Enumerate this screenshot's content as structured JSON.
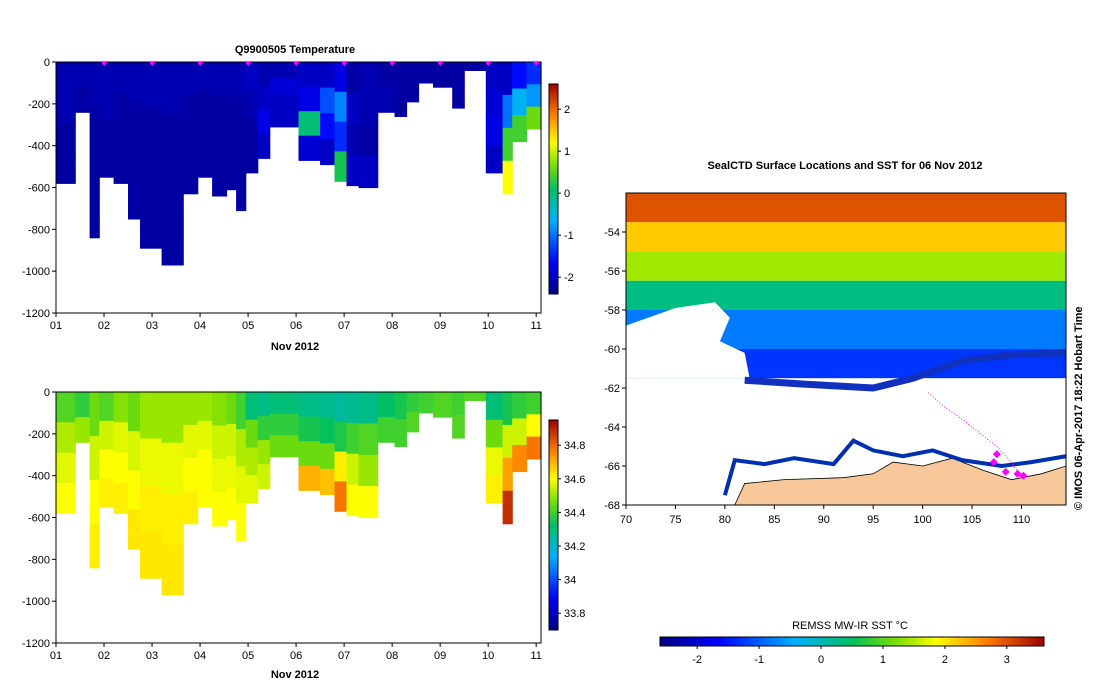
{
  "chart_data": [
    {
      "type": "heatmap",
      "id": "temperature-section",
      "title": "Q9900505  Temperature",
      "xlabel": "Nov 2012",
      "ylabel": "",
      "x_tick_labels": [
        "01",
        "02",
        "03",
        "04",
        "05",
        "06",
        "07",
        "08",
        "09",
        "10",
        "11"
      ],
      "xlim": [
        1,
        11.1
      ],
      "ylim": [
        -1200,
        0
      ],
      "y_ticks": [
        0,
        -200,
        -400,
        -600,
        -800,
        -1000,
        -1200
      ],
      "colorbar": {
        "min": -2.4,
        "max": 2.6,
        "ticks": [
          2,
          1,
          0,
          -1,
          -2
        ]
      },
      "markers_day": [
        2,
        3,
        4,
        5,
        6,
        7,
        8,
        9,
        10,
        11
      ],
      "profiles": [
        {
          "t0": 1.0,
          "t1": 1.4,
          "depth": -580,
          "vals": [
            -2.1,
            -2.1,
            -2.2,
            -2.2
          ]
        },
        {
          "t0": 1.4,
          "t1": 1.7,
          "depth": -240,
          "vals": [
            -2.1,
            -2.2
          ]
        },
        {
          "t0": 1.7,
          "t1": 1.9,
          "depth": -840,
          "vals": [
            -2.1,
            -2.2,
            -2.2,
            -2.2
          ]
        },
        {
          "t0": 1.9,
          "t1": 2.2,
          "depth": -550,
          "vals": [
            -2.1,
            -2.1,
            -2.2,
            -2.2
          ]
        },
        {
          "t0": 2.2,
          "t1": 2.5,
          "depth": -580,
          "vals": [
            -2.1,
            -2.2,
            -2.2,
            -2.2
          ]
        },
        {
          "t0": 2.5,
          "t1": 2.75,
          "depth": -750,
          "vals": [
            -2.1,
            -2.2,
            -2.2,
            -2.2
          ]
        },
        {
          "t0": 2.75,
          "t1": 3.2,
          "depth": -890,
          "vals": [
            -2.1,
            -2.2,
            -2.2,
            -2.2
          ]
        },
        {
          "t0": 3.2,
          "t1": 3.65,
          "depth": -970,
          "vals": [
            -2.1,
            -2.2,
            -2.2,
            -2.2
          ]
        },
        {
          "t0": 3.65,
          "t1": 3.95,
          "depth": -630,
          "vals": [
            -2.1,
            -2.2,
            -2.2,
            -2.2
          ]
        },
        {
          "t0": 3.95,
          "t1": 4.25,
          "depth": -550,
          "vals": [
            -2.1,
            -2.2,
            -2.2,
            -2.2
          ]
        },
        {
          "t0": 4.25,
          "t1": 4.55,
          "depth": -640,
          "vals": [
            -2.1,
            -2.2,
            -2.2,
            -2.2
          ]
        },
        {
          "t0": 4.55,
          "t1": 4.75,
          "depth": -610,
          "vals": [
            -2.1,
            -2.2,
            -2.2,
            -2.2
          ]
        },
        {
          "t0": 4.75,
          "t1": 4.95,
          "depth": -710,
          "vals": [
            -2.1,
            -2.2,
            -2.2,
            -2.2
          ]
        },
        {
          "t0": 4.95,
          "t1": 5.2,
          "depth": -530,
          "vals": [
            -2.0,
            -2.1,
            -2.2,
            -2.2
          ]
        },
        {
          "t0": 5.2,
          "t1": 5.45,
          "depth": -460,
          "vals": [
            -2.1,
            -2.0,
            -1.8,
            -2.0
          ]
        },
        {
          "t0": 5.45,
          "t1": 6.05,
          "depth": -310,
          "vals": [
            -2.1,
            -1.9,
            -2.0,
            -2.0
          ]
        },
        {
          "t0": 6.05,
          "t1": 6.5,
          "depth": -470,
          "vals": [
            -2.0,
            -1.8,
            0.0,
            -1.9
          ]
        },
        {
          "t0": 6.5,
          "t1": 6.8,
          "depth": -490,
          "vals": [
            -2.0,
            -1.2,
            -1.6,
            -2.0
          ]
        },
        {
          "t0": 6.8,
          "t1": 7.05,
          "depth": -570,
          "vals": [
            -1.8,
            -0.9,
            -1.4,
            0.2
          ]
        },
        {
          "t0": 7.05,
          "t1": 7.3,
          "depth": -590,
          "vals": [
            -2.2,
            -2.0,
            -2.1,
            -2.0
          ]
        },
        {
          "t0": 7.3,
          "t1": 7.7,
          "depth": -600,
          "vals": [
            -2.1,
            -2.1,
            -2.2,
            -2.0
          ]
        },
        {
          "t0": 7.7,
          "t1": 8.05,
          "depth": -240,
          "vals": [
            -2.2,
            -2.1
          ]
        },
        {
          "t0": 8.05,
          "t1": 8.3,
          "depth": -260,
          "vals": [
            -2.2,
            -2.2
          ]
        },
        {
          "t0": 8.3,
          "t1": 8.55,
          "depth": -190,
          "vals": [
            -2.2,
            -2.2
          ]
        },
        {
          "t0": 8.55,
          "t1": 8.85,
          "depth": -100,
          "vals": [
            -2.2
          ]
        },
        {
          "t0": 8.85,
          "t1": 9.25,
          "depth": -120,
          "vals": [
            -2.2
          ]
        },
        {
          "t0": 9.25,
          "t1": 9.5,
          "depth": -220,
          "vals": [
            -2.2,
            -2.2
          ]
        },
        {
          "t0": 9.5,
          "t1": 9.95,
          "depth": -40,
          "vals": [
            -2.2
          ]
        },
        {
          "t0": 9.95,
          "t1": 10.3,
          "depth": -530,
          "vals": [
            -2.0,
            -1.9,
            -1.8,
            -2.0
          ]
        },
        {
          "t0": 10.3,
          "t1": 10.5,
          "depth": -630,
          "vals": [
            -2.0,
            -1.0,
            0.4,
            1.2
          ]
        },
        {
          "t0": 10.5,
          "t1": 10.8,
          "depth": -380,
          "vals": [
            -1.6,
            -0.6,
            0.4
          ]
        },
        {
          "t0": 10.8,
          "t1": 11.1,
          "depth": -320,
          "vals": [
            -1.4,
            -0.8,
            0.6
          ]
        }
      ]
    },
    {
      "type": "heatmap",
      "id": "salinity-section",
      "title": "",
      "xlabel": "Nov 2012",
      "ylabel": "",
      "x_tick_labels": [
        "01",
        "02",
        "03",
        "04",
        "05",
        "06",
        "07",
        "08",
        "09",
        "10",
        "11"
      ],
      "xlim": [
        1,
        11.1
      ],
      "ylim": [
        -1200,
        0
      ],
      "y_ticks": [
        0,
        -200,
        -400,
        -600,
        -800,
        -1000,
        -1200
      ],
      "colorbar": {
        "min": 33.7,
        "max": 34.95,
        "ticks": [
          34.8,
          34.6,
          34.4,
          34.2,
          34,
          33.8
        ],
        "tick_labels": [
          "34.8",
          "34.6",
          "34.4",
          "34.2",
          "34",
          "33.8"
        ]
      },
      "profiles": [
        {
          "t0": 1.0,
          "t1": 1.4,
          "depth": -580,
          "vals": [
            34.42,
            34.52,
            34.57,
            34.6
          ]
        },
        {
          "t0": 1.4,
          "t1": 1.7,
          "depth": -240,
          "vals": [
            34.38,
            34.5
          ]
        },
        {
          "t0": 1.7,
          "t1": 1.9,
          "depth": -840,
          "vals": [
            34.45,
            34.55,
            34.6,
            34.62
          ]
        },
        {
          "t0": 1.9,
          "t1": 2.2,
          "depth": -550,
          "vals": [
            34.42,
            34.55,
            34.6,
            34.62
          ]
        },
        {
          "t0": 2.2,
          "t1": 2.5,
          "depth": -580,
          "vals": [
            34.48,
            34.57,
            34.6,
            34.62
          ]
        },
        {
          "t0": 2.5,
          "t1": 2.75,
          "depth": -750,
          "vals": [
            34.45,
            34.56,
            34.6,
            34.63
          ]
        },
        {
          "t0": 2.75,
          "t1": 3.2,
          "depth": -890,
          "vals": [
            34.5,
            34.58,
            34.62,
            34.63
          ]
        },
        {
          "t0": 3.2,
          "t1": 3.65,
          "depth": -970,
          "vals": [
            34.5,
            34.58,
            34.62,
            34.63
          ]
        },
        {
          "t0": 3.65,
          "t1": 3.95,
          "depth": -630,
          "vals": [
            34.5,
            34.57,
            34.6,
            34.62
          ]
        },
        {
          "t0": 3.95,
          "t1": 4.25,
          "depth": -550,
          "vals": [
            34.5,
            34.57,
            34.6,
            34.6
          ]
        },
        {
          "t0": 4.25,
          "t1": 4.55,
          "depth": -640,
          "vals": [
            34.48,
            34.55,
            34.58,
            34.6
          ]
        },
        {
          "t0": 4.55,
          "t1": 4.75,
          "depth": -610,
          "vals": [
            34.45,
            34.55,
            34.58,
            34.6
          ]
        },
        {
          "t0": 4.75,
          "t1": 4.95,
          "depth": -710,
          "vals": [
            34.4,
            34.52,
            34.57,
            34.6
          ]
        },
        {
          "t0": 4.95,
          "t1": 5.2,
          "depth": -530,
          "vals": [
            34.3,
            34.45,
            34.52,
            34.57
          ]
        },
        {
          "t0": 5.2,
          "t1": 5.45,
          "depth": -460,
          "vals": [
            34.28,
            34.38,
            34.5,
            34.55
          ]
        },
        {
          "t0": 5.45,
          "t1": 6.05,
          "depth": -310,
          "vals": [
            34.3,
            34.38,
            34.45
          ]
        },
        {
          "t0": 6.05,
          "t1": 6.5,
          "depth": -470,
          "vals": [
            34.28,
            34.35,
            34.45,
            34.7
          ]
        },
        {
          "t0": 6.5,
          "t1": 6.8,
          "depth": -490,
          "vals": [
            34.27,
            34.33,
            34.45,
            34.68
          ]
        },
        {
          "t0": 6.8,
          "t1": 7.05,
          "depth": -570,
          "vals": [
            34.25,
            34.36,
            34.62,
            34.78
          ]
        },
        {
          "t0": 7.05,
          "t1": 7.3,
          "depth": -590,
          "vals": [
            34.27,
            34.4,
            34.55,
            34.6
          ]
        },
        {
          "t0": 7.3,
          "t1": 7.7,
          "depth": -600,
          "vals": [
            34.28,
            34.42,
            34.5,
            34.6
          ]
        },
        {
          "t0": 7.7,
          "t1": 8.05,
          "depth": -240,
          "vals": [
            34.32,
            34.4
          ]
        },
        {
          "t0": 8.05,
          "t1": 8.3,
          "depth": -260,
          "vals": [
            34.35,
            34.4
          ]
        },
        {
          "t0": 8.3,
          "t1": 8.55,
          "depth": -190,
          "vals": [
            34.38,
            34.42
          ]
        },
        {
          "t0": 8.55,
          "t1": 8.85,
          "depth": -100,
          "vals": [
            34.4
          ]
        },
        {
          "t0": 8.85,
          "t1": 9.25,
          "depth": -120,
          "vals": [
            34.42
          ]
        },
        {
          "t0": 9.25,
          "t1": 9.5,
          "depth": -220,
          "vals": [
            34.4,
            34.42
          ]
        },
        {
          "t0": 9.5,
          "t1": 9.95,
          "depth": -40,
          "vals": [
            34.42
          ]
        },
        {
          "t0": 9.95,
          "t1": 10.3,
          "depth": -530,
          "vals": [
            34.3,
            34.45,
            34.58,
            34.62
          ]
        },
        {
          "t0": 10.3,
          "t1": 10.5,
          "depth": -630,
          "vals": [
            34.35,
            34.55,
            34.72,
            34.88
          ]
        },
        {
          "t0": 10.5,
          "t1": 10.8,
          "depth": -380,
          "vals": [
            34.38,
            34.55,
            34.75
          ]
        },
        {
          "t0": 10.8,
          "t1": 11.1,
          "depth": -320,
          "vals": [
            34.4,
            34.6,
            34.78
          ]
        }
      ]
    },
    {
      "type": "heatmap",
      "id": "sst-map",
      "title": "SealCTD Surface Locations and SST for 06 Nov 2012",
      "xlabel": "",
      "ylabel": "",
      "xlim": [
        70,
        114.5
      ],
      "ylim": [
        -68,
        -52
      ],
      "x_ticks": [
        70,
        75,
        80,
        85,
        90,
        95,
        100,
        105,
        110
      ],
      "y_ticks": [
        -54,
        -56,
        -58,
        -60,
        -62,
        -64,
        -66,
        -68
      ],
      "side_label": "©  IMOS 06-Apr-2017 18:22 Hobart Time",
      "colorbar": {
        "title": "REMSS MW-IR SST °C",
        "min": -2.6,
        "max": 3.6,
        "ticks": [
          -2,
          -1,
          0,
          1,
          2,
          3
        ]
      },
      "sst_bands": [
        {
          "lat_top": -52.0,
          "lat_bottom": -53.5,
          "sst": 3.0
        },
        {
          "lat_top": -53.5,
          "lat_bottom": -55.0,
          "sst": 2.2
        },
        {
          "lat_top": -55.0,
          "lat_bottom": -56.5,
          "sst": 1.4
        },
        {
          "lat_top": -56.5,
          "lat_bottom": -58.0,
          "sst": 0.3
        },
        {
          "lat_top": -58.0,
          "lat_bottom": -60.0,
          "sst": -0.8
        },
        {
          "lat_top": -60.0,
          "lat_bottom": -61.5,
          "sst": -1.3
        }
      ],
      "track": [
        [
          110.0,
          -66.6
        ],
        [
          109.5,
          -66.2
        ],
        [
          108.6,
          -65.6
        ],
        [
          107.5,
          -65.0
        ],
        [
          106.0,
          -64.4
        ],
        [
          104.0,
          -63.6
        ],
        [
          102.0,
          -62.9
        ],
        [
          100.5,
          -62.2
        ]
      ],
      "positions": [
        [
          107.5,
          -65.4
        ],
        [
          107.2,
          -65.8
        ],
        [
          109.6,
          -66.4
        ],
        [
          110.2,
          -66.5
        ],
        [
          108.4,
          -66.3
        ]
      ]
    }
  ]
}
